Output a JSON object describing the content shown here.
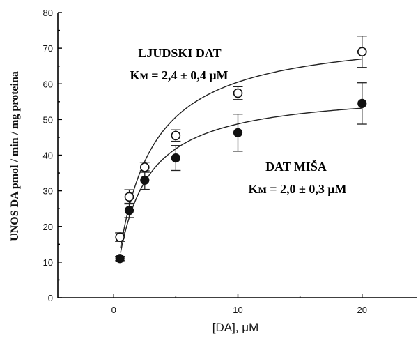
{
  "chart_data": {
    "type": "scatter",
    "xlabel": "[DA], μM",
    "ylabel": "UNOS DA pmol / min / mg proteina",
    "xlim": [
      -4.5,
      24.5
    ],
    "ylim": [
      0,
      80
    ],
    "x_ticks": [
      0,
      10,
      20
    ],
    "y_ticks": [
      0,
      10,
      20,
      30,
      40,
      50,
      60,
      70,
      80
    ],
    "grid": false,
    "series": [
      {
        "name": "LJUDSKI DAT",
        "marker": "open-circle",
        "x": [
          0.5,
          1.25,
          2.5,
          5,
          10,
          20
        ],
        "y": [
          17,
          28.3,
          36.6,
          45.5,
          57.4,
          69
        ],
        "err": [
          1.2,
          2.0,
          1.4,
          1.6,
          1.8,
          4.4
        ],
        "fit": {
          "vmax": 75,
          "km": 2.4
        }
      },
      {
        "name": "DAT MIŠA",
        "marker": "filled-circle",
        "x": [
          0.5,
          1.25,
          2.5,
          5,
          10,
          20
        ],
        "y": [
          11,
          24.5,
          33,
          39.2,
          46.3,
          54.5
        ],
        "err": [
          0.6,
          2.0,
          2.6,
          3.5,
          5.2,
          5.8
        ],
        "fit": {
          "vmax": 58.5,
          "km": 2.0
        }
      }
    ],
    "annotations": [
      {
        "title": "LJUDSKI DAT",
        "km_text": "Kᴍ = 2,4 ± 0,4 μM"
      },
      {
        "title": "DAT MIŠA",
        "km_text": "Kᴍ = 2,0 ± 0,3 μM"
      }
    ]
  }
}
